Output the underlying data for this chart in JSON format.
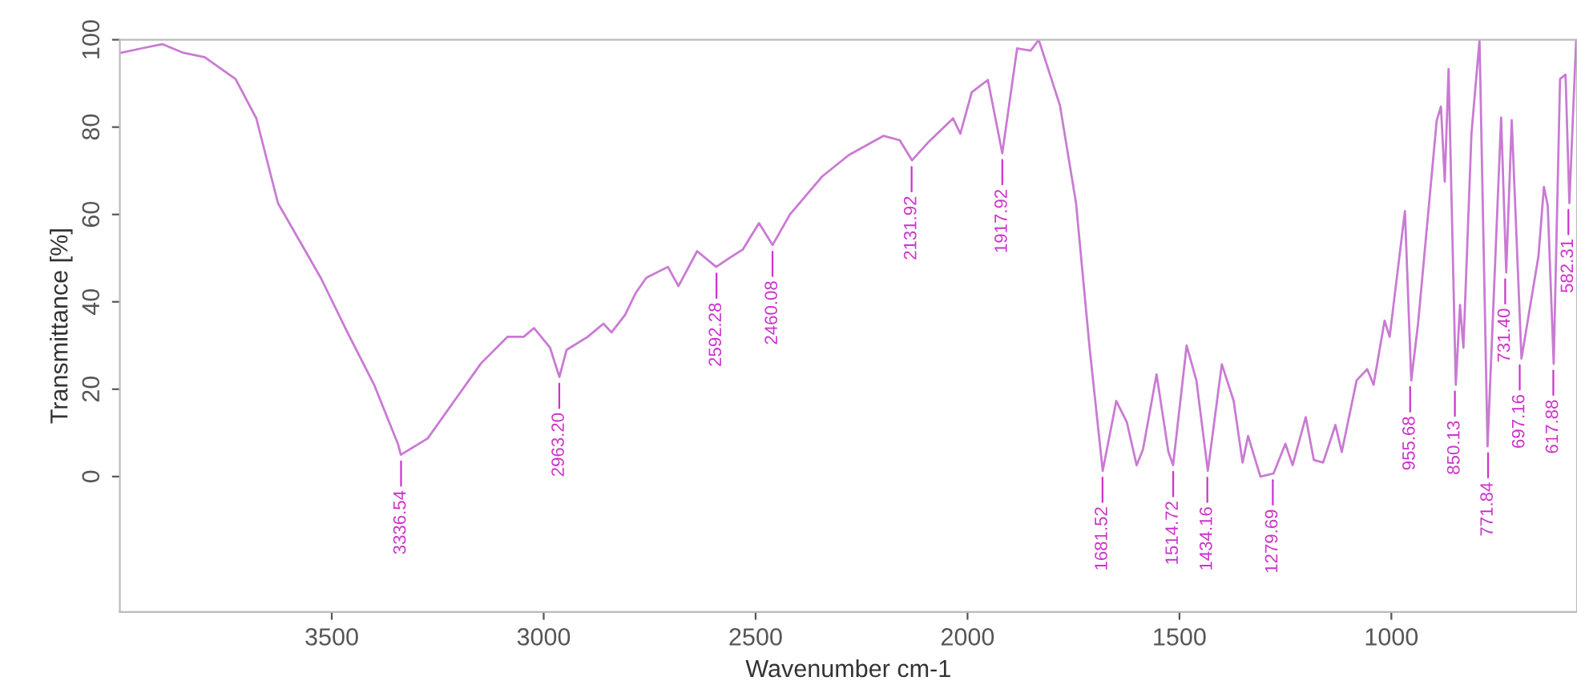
{
  "chart_data": {
    "type": "line",
    "xlabel": "Wavenumber cm-1",
    "ylabel": "Transmittance [%]",
    "xlim": [
      4000,
      562
    ],
    "xticks": [
      3500,
      3000,
      2500,
      2000,
      1500,
      1000
    ],
    "ylim": [
      -31,
      100
    ],
    "yticks": [
      0,
      20,
      40,
      60,
      80,
      100
    ],
    "grid": false,
    "legend": false,
    "marker": "none",
    "line_style": "solid",
    "series": [
      {
        "color": "#c97ad3",
        "x": [
          3997,
          3950,
          3900,
          3850,
          3800,
          3727,
          3678,
          3627,
          3526,
          3463,
          3400,
          3344,
          3337,
          3274,
          3211,
          3148,
          3085,
          3047,
          3023,
          2985,
          2963,
          2946,
          2896,
          2859,
          2840,
          2808,
          2783,
          2758,
          2707,
          2682,
          2638,
          2593,
          2562,
          2530,
          2492,
          2460,
          2419,
          2343,
          2280,
          2198,
          2160,
          2131,
          2091,
          2034,
          2017,
          1990,
          1952,
          1918,
          1883,
          1851,
          1832,
          1782,
          1744,
          1712,
          1681,
          1649,
          1624,
          1601,
          1586,
          1554,
          1526,
          1515,
          1483,
          1460,
          1433,
          1400,
          1372,
          1351,
          1338,
          1309,
          1278,
          1250,
          1233,
          1202,
          1183,
          1161,
          1132,
          1117,
          1082,
          1057,
          1042,
          1016,
          1004,
          968,
          953,
          937,
          893,
          883,
          874,
          865,
          848,
          838,
          830,
          811,
          792,
          773,
          741,
          729,
          716,
          693,
          672,
          653,
          640,
          631,
          617,
          602,
          589,
          580,
          564
        ],
        "values": [
          97,
          98,
          99,
          97,
          96,
          91,
          82,
          62.6,
          45.5,
          33,
          21,
          7.5,
          5,
          8.7,
          17.3,
          25.9,
          32,
          32,
          34,
          29.5,
          22.8,
          29,
          32,
          35,
          33,
          37,
          42,
          45.5,
          48,
          43.6,
          51.6,
          48,
          50,
          52,
          58,
          53,
          60,
          68.7,
          73.6,
          78,
          77,
          72.4,
          76.7,
          82,
          78.5,
          88,
          90.8,
          74,
          98,
          97.5,
          100,
          85,
          62.6,
          29.5,
          1.3,
          17.3,
          12.4,
          2.6,
          6.2,
          23.4,
          5.6,
          2.6,
          30,
          22,
          1.3,
          25.7,
          17.3,
          3.2,
          9.3,
          0,
          0.7,
          7.5,
          2.6,
          13.6,
          3.8,
          3.2,
          11.8,
          5.6,
          22,
          24.6,
          21,
          35.7,
          32,
          60.8,
          22,
          35,
          81.5,
          84.7,
          67.5,
          93.3,
          21,
          39.3,
          29.5,
          78.5,
          100,
          6.9,
          82.2,
          46.7,
          81.6,
          27,
          39.3,
          50.4,
          66.3,
          62,
          25.8,
          91,
          92,
          62.6,
          100
        ]
      }
    ],
    "annotations": [
      {
        "text": "3336.54",
        "x": 3336.54,
        "y": 5
      },
      {
        "text": "2963.20",
        "x": 2963.2,
        "y": 22.8
      },
      {
        "text": "2592.28",
        "x": 2592.28,
        "y": 48
      },
      {
        "text": "2460.08",
        "x": 2460.08,
        "y": 53
      },
      {
        "text": "2131.92",
        "x": 2131.92,
        "y": 72.4
      },
      {
        "text": "1917.92",
        "x": 1917.92,
        "y": 74
      },
      {
        "text": "1681.52",
        "x": 1681.52,
        "y": 1.3
      },
      {
        "text": "1514.72",
        "x": 1514.72,
        "y": 2.6
      },
      {
        "text": "1434.16",
        "x": 1434.16,
        "y": 1.3
      },
      {
        "text": "1279.69",
        "x": 1279.69,
        "y": 0.7
      },
      {
        "text": "955.68",
        "x": 955.68,
        "y": 22
      },
      {
        "text": "850.13",
        "x": 850.13,
        "y": 21
      },
      {
        "text": "771.84",
        "x": 771.84,
        "y": 6.9
      },
      {
        "text": "731.40",
        "x": 731.4,
        "y": 46.7
      },
      {
        "text": "697.16",
        "x": 697.16,
        "y": 27
      },
      {
        "text": "617.88",
        "x": 617.88,
        "y": 25.8
      },
      {
        "text": "582.31",
        "x": 582.31,
        "y": 62.6
      }
    ]
  }
}
